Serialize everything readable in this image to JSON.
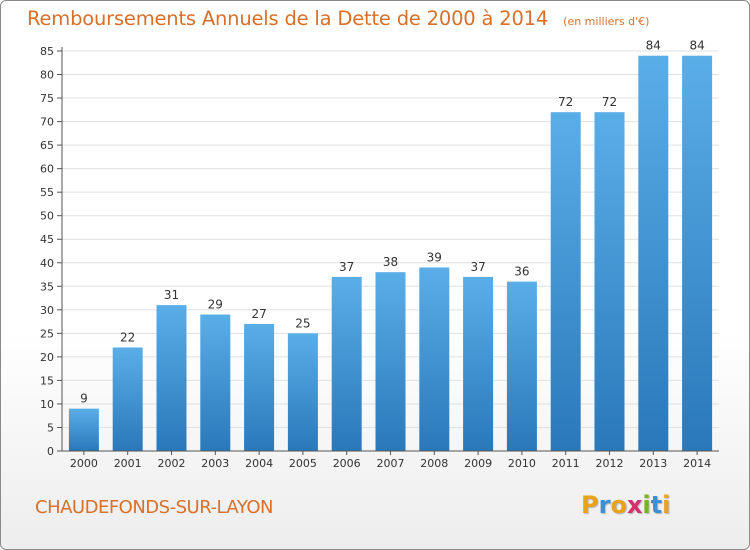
{
  "header": {
    "title": "Remboursements Annuels de la Dette de 2000 à 2014",
    "subtitle": "(en milliers d'€)"
  },
  "footer": {
    "city": "CHAUDEFONDS-SUR-LAYON",
    "brand": "Proxiti",
    "brand_colors": [
      "#e8a21c",
      "#3a8fd6",
      "#e8a21c",
      "#d62f6e",
      "#7ab51d",
      "#3a8fd6",
      "#e8a21c"
    ]
  },
  "colors": {
    "bar_top": "#5aaee8",
    "bar_bottom": "#2a78ba",
    "title": "#d8702a",
    "grid": "#e0e0e0"
  },
  "chart_data": {
    "type": "bar",
    "title": "Remboursements Annuels de la Dette de 2000 à 2014",
    "subtitle": "(en milliers d'€)",
    "categories": [
      "2000",
      "2001",
      "2002",
      "2003",
      "2004",
      "2005",
      "2006",
      "2007",
      "2008",
      "2009",
      "2010",
      "2011",
      "2012",
      "2013",
      "2014"
    ],
    "values": [
      9,
      22,
      31,
      29,
      27,
      25,
      37,
      38,
      39,
      37,
      36,
      72,
      72,
      84,
      84
    ],
    "ylim": [
      0,
      85
    ],
    "yticks": [
      0,
      5,
      10,
      15,
      20,
      25,
      30,
      35,
      40,
      45,
      50,
      55,
      60,
      65,
      70,
      75,
      80,
      85
    ],
    "grid": true,
    "data_labels": true
  }
}
